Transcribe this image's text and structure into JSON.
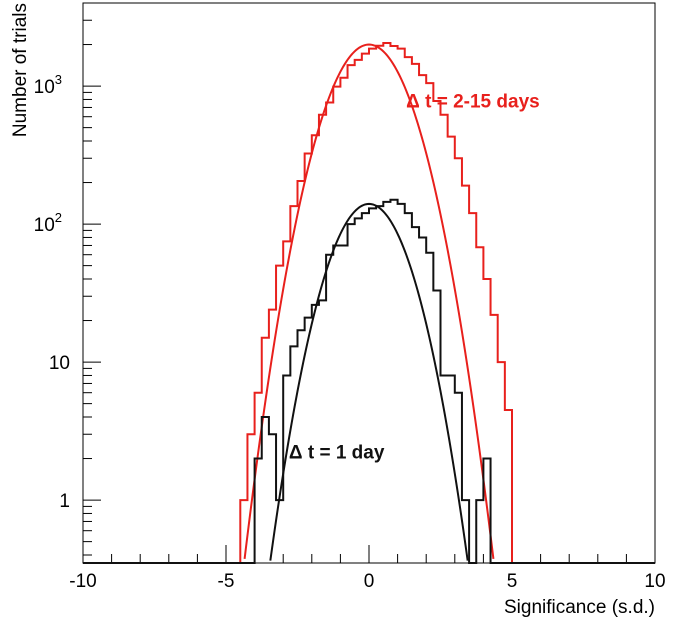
{
  "chart_data": {
    "type": "line",
    "xlabel": "Significance (s.d.)",
    "ylabel": "Number of trials",
    "xlim": [
      -10,
      10
    ],
    "ylim_log": [
      0.35,
      4000
    ],
    "yscale": "log",
    "x_ticks": [
      {
        "value": -10,
        "label": "-10"
      },
      {
        "value": -5,
        "label": "-5"
      },
      {
        "value": 0,
        "label": "0"
      },
      {
        "value": 5,
        "label": "5"
      },
      {
        "value": 10,
        "label": "10"
      }
    ],
    "y_ticks": [
      {
        "value": 1,
        "label": "1",
        "sup": ""
      },
      {
        "value": 10,
        "label": "10",
        "sup": ""
      },
      {
        "value": 100,
        "label": "10",
        "sup": "2"
      },
      {
        "value": 1000,
        "label": "10",
        "sup": "3"
      }
    ],
    "grid": false,
    "bin_width": 0.25,
    "series": [
      {
        "name": "Δ t = 2-15 days",
        "color": "#e8201c",
        "bin_edges_start": -4.5,
        "histogram": [
          1,
          3,
          6,
          15,
          24,
          50,
          75,
          135,
          205,
          325,
          440,
          620,
          760,
          990,
          1150,
          1420,
          1550,
          1720,
          1870,
          1960,
          2050,
          1950,
          1870,
          1620,
          1450,
          1200,
          1050,
          780,
          620,
          430,
          300,
          190,
          120,
          68,
          40,
          22,
          10,
          4.5
        ],
        "fit": {
          "amplitude": 2000,
          "mean": 0.0,
          "sigma": 1.05
        }
      },
      {
        "name": "Δ t = 1 day",
        "color": "#111111",
        "bin_edges_start": -4.0,
        "histogram": [
          2,
          4,
          3,
          1,
          8,
          13,
          17,
          21,
          26,
          28,
          60,
          70,
          70,
          100,
          110,
          120,
          130,
          135,
          145,
          150,
          140,
          120,
          95,
          80,
          62,
          33,
          8,
          8,
          6,
          1,
          0.35,
          1,
          2
        ],
        "fit": {
          "amplitude": 140,
          "mean": 0.0,
          "sigma": 1.0
        }
      }
    ],
    "annotations": [
      {
        "text": "Δ t = 2-15 days",
        "color": "#e8201c",
        "x": 1.3,
        "y": 700
      },
      {
        "text": "Δ t = 1 day",
        "color": "#111111",
        "x": -2.8,
        "y": 2
      }
    ]
  }
}
